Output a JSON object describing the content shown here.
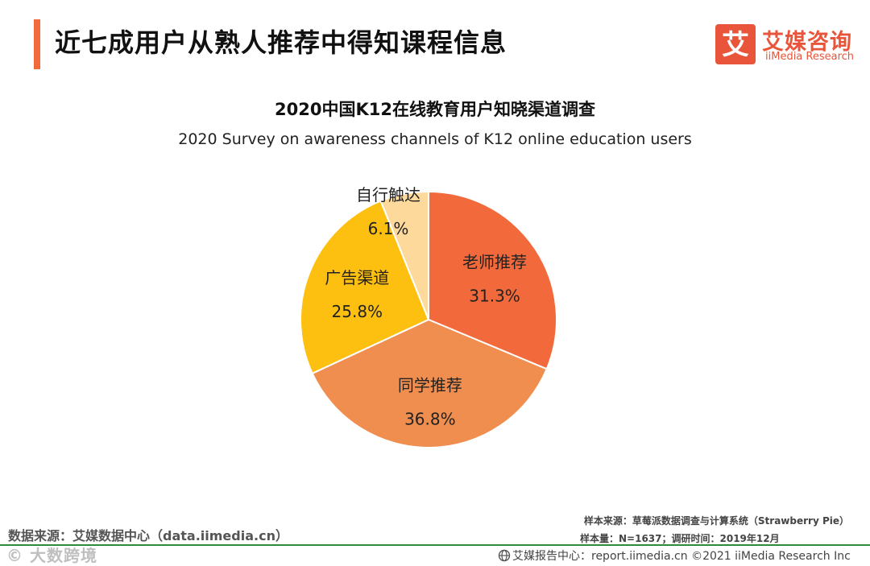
{
  "header": {
    "title": "近七成用户从熟人推荐中得知课程信息",
    "accent_color": "#f26a3b"
  },
  "logo": {
    "mark": "艾",
    "cn": "艾媒咨询",
    "en": "iiMedia Research",
    "color": "#e9553a"
  },
  "chart_data": {
    "type": "pie",
    "title": "2020中国K12在线教育用户知晓渠道调查",
    "subtitle": "2020 Survey on awareness channels of K12 online education users",
    "slices": [
      {
        "label": "老师推荐",
        "value": 31.3,
        "display": "31.3%",
        "color": "#f26a3b"
      },
      {
        "label": "同学推荐",
        "value": 36.8,
        "display": "36.8%",
        "color": "#ef8e4e"
      },
      {
        "label": "广告渠道",
        "value": 25.8,
        "display": "25.8%",
        "color": "#fdbf10"
      },
      {
        "label": "自行触达",
        "value": 6.1,
        "display": "6.1%",
        "color": "#fdd99b"
      }
    ],
    "start_angle": "12 o'clock",
    "direction": "clockwise"
  },
  "footer": {
    "source": "数据来源：艾媒数据中心（data.iimedia.cn）",
    "sample_source": "样本来源：草莓派数据调查与计算系统（Strawberry Pie）",
    "sample_size": "样本量：N=1637；调研时间：2019年12月",
    "report": "艾媒报告中心：report.iimedia.cn   ©2021 iiMedia Research  Inc",
    "divider_color": "#2d8c3c",
    "watermark": "© 大数跨境"
  }
}
